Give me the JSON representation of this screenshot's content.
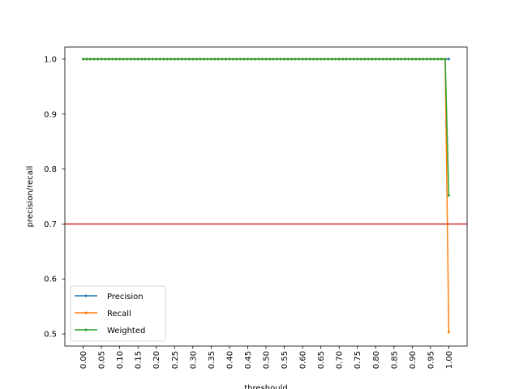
{
  "chart_data": {
    "type": "line",
    "title": "",
    "xlabel": "threshould",
    "ylabel": "precision/recall",
    "xlim": [
      -0.05,
      1.05
    ],
    "ylim": [
      0.478,
      1.022
    ],
    "x_ticks": [
      0.0,
      0.05,
      0.1,
      0.15,
      0.2,
      0.25,
      0.3,
      0.35,
      0.4,
      0.45,
      0.5,
      0.55,
      0.6,
      0.65,
      0.7,
      0.75,
      0.8,
      0.85,
      0.9,
      0.95,
      1.0
    ],
    "x_tick_labels": [
      "0.00",
      "0.05",
      "0.10",
      "0.15",
      "0.20",
      "0.25",
      "0.30",
      "0.35",
      "0.40",
      "0.45",
      "0.50",
      "0.55",
      "0.60",
      "0.65",
      "0.70",
      "0.75",
      "0.80",
      "0.85",
      "0.90",
      "0.95",
      "1.00"
    ],
    "y_ticks": [
      0.5,
      0.6,
      0.7,
      0.8,
      0.9,
      1.0
    ],
    "y_tick_labels": [
      "0.5",
      "0.6",
      "0.7",
      "0.8",
      "0.9",
      "1.0"
    ],
    "grid": false,
    "legend_position": "lower-left",
    "x_range": {
      "start": 0.0,
      "stop": 0.99,
      "step": 0.01
    },
    "series": [
      {
        "name": "Precision",
        "color": "#1f77b4",
        "constant": 1.0,
        "final": {
          "x": 1.0,
          "y": 1.0
        }
      },
      {
        "name": "Recall",
        "color": "#ff7f0e",
        "constant": 1.0,
        "final": {
          "x": 1.0,
          "y": 0.503
        }
      },
      {
        "name": "Weighted",
        "color": "#2ca02c",
        "constant": 1.0,
        "final": {
          "x": 1.0,
          "y": 0.752
        }
      }
    ],
    "reference_line": {
      "y": 0.7,
      "color": "#d62728"
    }
  }
}
